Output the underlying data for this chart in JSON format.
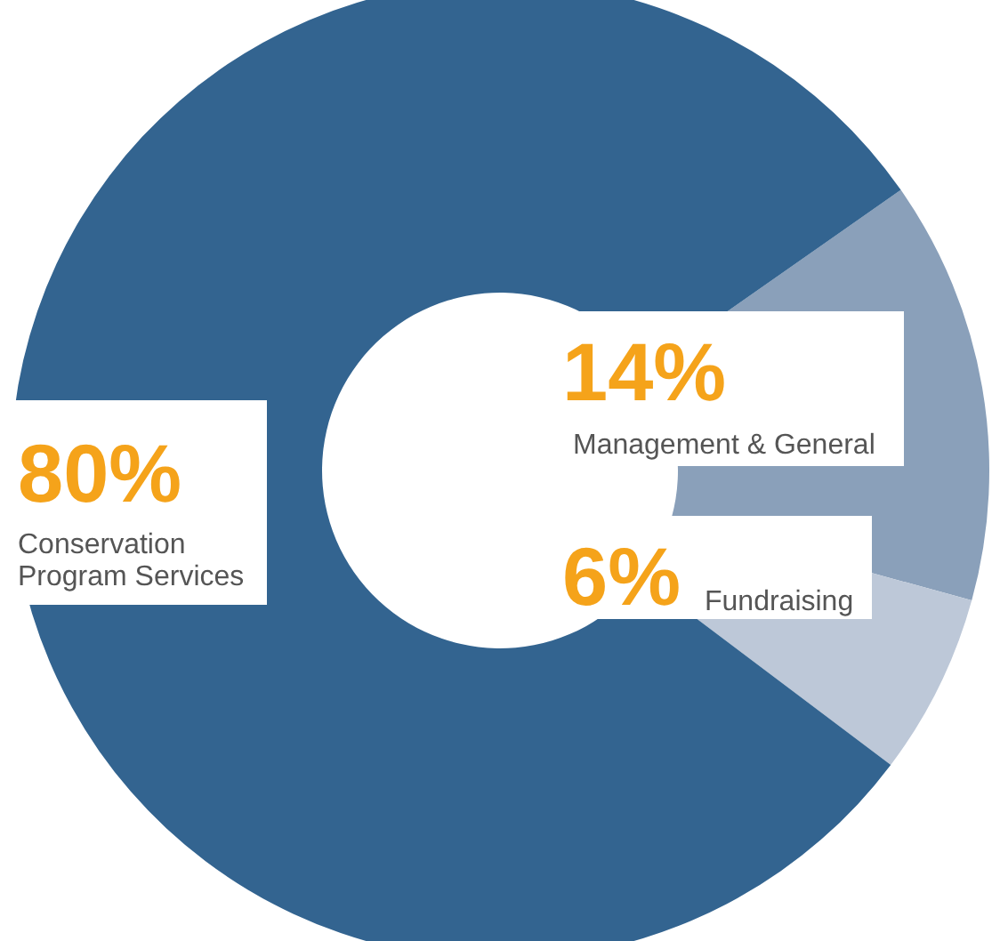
{
  "chart_data": {
    "type": "donut",
    "categories": [
      "Management & General",
      "Fundraising",
      "Conservation\nProgram Services"
    ],
    "values": [
      14,
      6,
      80
    ],
    "colors": [
      "#8aa0ba",
      "#bdc8d8",
      "#336490"
    ],
    "value_labels": [
      "14%",
      "6%",
      "80%"
    ]
  }
}
